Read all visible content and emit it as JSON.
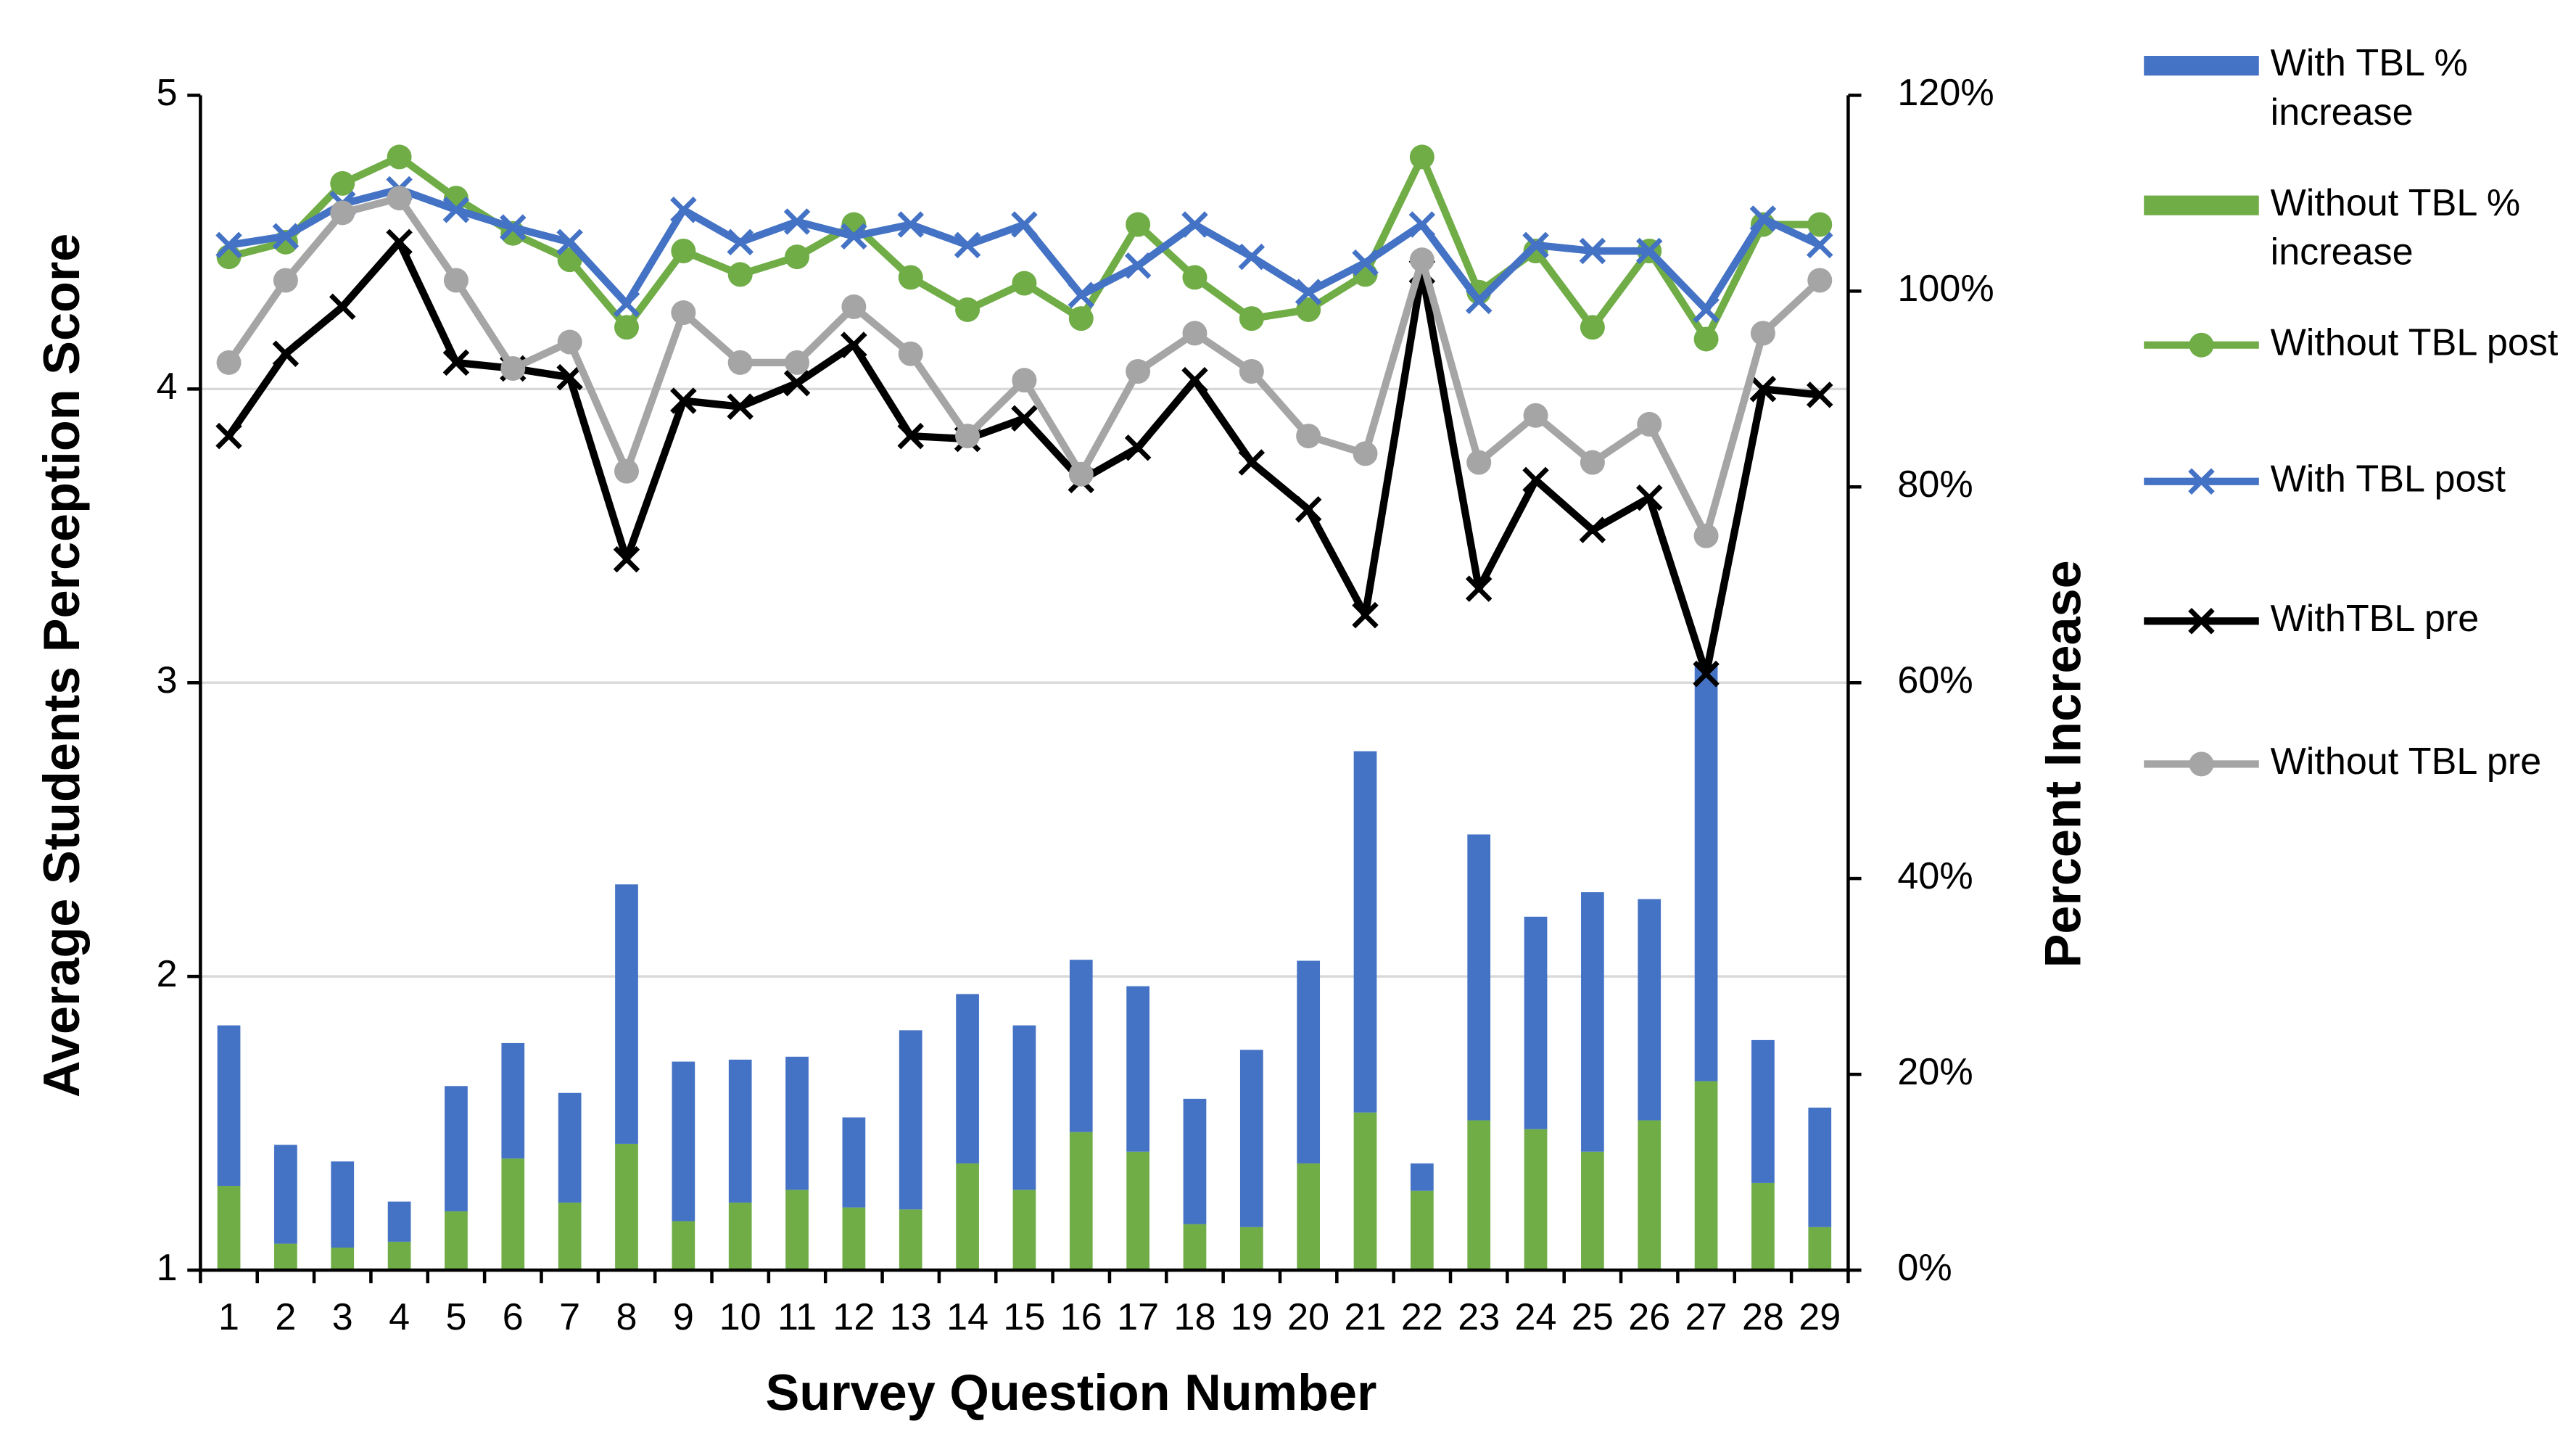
{
  "chart_data": {
    "type": "combo",
    "xlabel": "Survey Question Number",
    "ylabel": "Average Students Perception Score",
    "y2label": "Percent Increase",
    "categories": [
      "1",
      "2",
      "3",
      "4",
      "5",
      "6",
      "7",
      "8",
      "9",
      "10",
      "11",
      "12",
      "13",
      "14",
      "15",
      "16",
      "17",
      "18",
      "19",
      "20",
      "21",
      "22",
      "23",
      "24",
      "25",
      "26",
      "27",
      "28",
      "29"
    ],
    "ylim": [
      1,
      5
    ],
    "yticks": [
      1,
      2,
      3,
      4,
      5
    ],
    "y2lim": [
      0,
      120
    ],
    "y2ticks": [
      {
        "value": 0,
        "label": "0%"
      },
      {
        "value": 20,
        "label": "20%"
      },
      {
        "value": 40,
        "label": "40%"
      },
      {
        "value": 60,
        "label": "60%"
      },
      {
        "value": 80,
        "label": "80%"
      },
      {
        "value": 100,
        "label": "100%"
      },
      {
        "value": 120,
        "label": "120%"
      }
    ],
    "grid": true,
    "stacked": true,
    "legend": "right",
    "series": [
      {
        "name": "With TBL % increase",
        "type": "bar",
        "axis": "y2",
        "color": "#4472c4",
        "values": [
          16.4,
          10.1,
          8.8,
          4.1,
          12.8,
          11.8,
          11.2,
          26.5,
          16.3,
          14.6,
          13.6,
          9.2,
          18.3,
          17.3,
          16.8,
          17.6,
          16.9,
          12.8,
          18.1,
          20.7,
          36.9,
          2.8,
          29.2,
          21.7,
          26.5,
          22.6,
          42.5,
          14.6,
          12.2
        ]
      },
      {
        "name": "Without TBL % increase",
        "type": "bar",
        "axis": "y2",
        "color": "#70ad47",
        "values": [
          8.6,
          2.7,
          2.3,
          2.9,
          6.0,
          11.4,
          6.9,
          12.9,
          5.0,
          6.9,
          8.2,
          6.4,
          6.2,
          10.9,
          8.2,
          14.1,
          12.1,
          4.7,
          4.4,
          10.9,
          16.1,
          8.1,
          15.3,
          14.4,
          12.1,
          15.3,
          19.3,
          8.9,
          4.4
        ]
      },
      {
        "name": "Without TBL post",
        "type": "line",
        "marker": "circle",
        "color": "#70ad47",
        "values": [
          4.45,
          4.5,
          4.7,
          4.79,
          4.65,
          4.53,
          4.44,
          4.21,
          4.47,
          4.39,
          4.45,
          4.56,
          4.38,
          4.27,
          4.36,
          4.24,
          4.56,
          4.38,
          4.24,
          4.27,
          4.39,
          4.79,
          4.33,
          4.47,
          4.21,
          4.47,
          4.17,
          4.56,
          4.56
        ]
      },
      {
        "name": "With TBL post",
        "type": "line",
        "marker": "x",
        "color": "#4472c4",
        "values": [
          4.49,
          4.52,
          4.63,
          4.68,
          4.61,
          4.55,
          4.5,
          4.29,
          4.61,
          4.5,
          4.57,
          4.52,
          4.56,
          4.49,
          4.56,
          4.32,
          4.42,
          4.56,
          4.45,
          4.33,
          4.43,
          4.56,
          4.3,
          4.49,
          4.47,
          4.47,
          4.27,
          4.58,
          4.49
        ]
      },
      {
        "name": "WithTBL pre",
        "type": "line",
        "marker": "x",
        "color": "#000000",
        "values": [
          3.84,
          4.12,
          4.28,
          4.5,
          4.09,
          4.07,
          4.04,
          3.42,
          3.96,
          3.94,
          4.02,
          4.15,
          3.84,
          3.83,
          3.9,
          3.69,
          3.8,
          4.03,
          3.75,
          3.59,
          3.23,
          4.4,
          3.32,
          3.69,
          3.52,
          3.63,
          3.03,
          4.0,
          3.98
        ]
      },
      {
        "name": "Without TBL pre",
        "type": "line",
        "marker": "circle",
        "color": "#a5a5a5",
        "values": [
          4.09,
          4.37,
          4.6,
          4.65,
          4.37,
          4.07,
          4.16,
          3.72,
          4.26,
          4.09,
          4.09,
          4.28,
          4.12,
          3.84,
          4.03,
          3.71,
          4.06,
          4.19,
          4.06,
          3.84,
          3.78,
          4.44,
          3.75,
          3.91,
          3.75,
          3.88,
          3.5,
          4.19,
          4.37
        ]
      }
    ]
  }
}
